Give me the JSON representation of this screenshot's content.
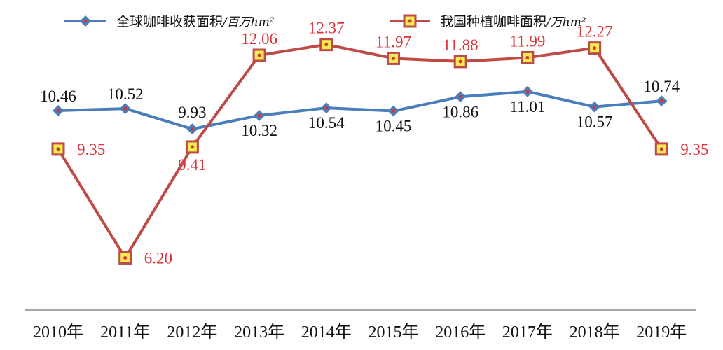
{
  "chart_data": {
    "type": "line",
    "categories": [
      "2010年",
      "2011年",
      "2012年",
      "2013年",
      "2014年",
      "2015年",
      "2016年",
      "2017年",
      "2018年",
      "2019年"
    ],
    "series": [
      {
        "name": "全球咖啡收获面积",
        "unit": "/百万hm²",
        "values": [
          10.46,
          10.52,
          9.93,
          10.32,
          10.54,
          10.45,
          10.86,
          11.01,
          10.57,
          10.74
        ],
        "labels": [
          "10.46",
          "10.52",
          "9.93",
          "10.32",
          "10.54",
          "10.45",
          "10.86",
          "11.01",
          "10.57",
          "10.74"
        ],
        "line_color": "#4a7ebb",
        "marker": "diamond",
        "marker_fill": "#4a7ebb",
        "label_color": "#111111"
      },
      {
        "name": "我国种植咖啡面积",
        "unit": "/万hm²",
        "values": [
          9.35,
          6.2,
          9.41,
          12.06,
          12.37,
          11.97,
          11.88,
          11.99,
          12.27,
          9.35
        ],
        "labels": [
          "9.35",
          "6.20",
          "9.41",
          "12.06",
          "12.37",
          "11.97",
          "11.88",
          "11.99",
          "12.27",
          "9.35"
        ],
        "line_color": "#be4b48",
        "marker": "square",
        "marker_fill": "#f3ec4f",
        "label_color": "#d8333a"
      }
    ],
    "legend_position": "top",
    "grid": false
  }
}
